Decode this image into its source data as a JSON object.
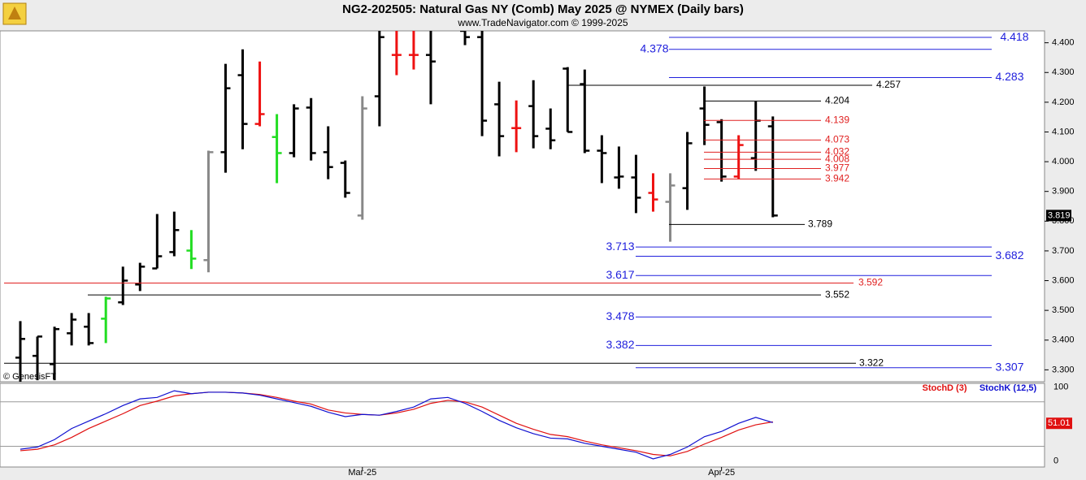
{
  "chart_data": [
    {
      "type": "ohlc",
      "title": "NG2-202505:  Natural Gas NY (Comb) May 2025 @ NYMEX  (Daily bars)",
      "subtitle": "www.TradeNavigator.com © 1999-2025",
      "watermark": "© GenesisFT",
      "categories": [
        null,
        null,
        null,
        null,
        null,
        null,
        null,
        null,
        null,
        null,
        null,
        null,
        null,
        null,
        null,
        null,
        null,
        null,
        null,
        null,
        "Mar-25",
        null,
        null,
        null,
        null,
        null,
        null,
        null,
        null,
        null,
        null,
        null,
        null,
        null,
        null,
        null,
        null,
        null,
        null,
        null,
        null,
        "Apr-25",
        null,
        null,
        null
      ],
      "open": [
        3.341,
        3.347,
        3.319,
        3.423,
        3.445,
        3.472,
        3.527,
        3.587,
        3.641,
        3.696,
        3.701,
        3.669,
        4.032,
        4.291,
        4.127,
        4.083,
        4.029,
        4.182,
        4.032,
        3.996,
        3.819,
        4.22,
        4.359,
        4.359,
        4.359,
        null,
        4.44,
        4.419,
        4.193,
        4.113,
        4.187,
        4.111,
        4.313,
        4.261,
        4.037,
        3.947,
        3.947,
        3.895,
        3.865,
        3.911,
        4.179,
        4.133,
        3.95,
        4.012,
        4.119
      ],
      "high": [
        3.464,
        3.412,
        3.445,
        3.491,
        3.491,
        3.546,
        3.647,
        3.66,
        3.824,
        3.832,
        3.77,
        4.037,
        4.329,
        4.378,
        4.337,
        4.16,
        4.193,
        4.214,
        4.119,
        4.004,
        4.22,
        4.44,
        4.44,
        4.44,
        4.44,
        null,
        4.44,
        4.44,
        4.269,
        4.206,
        4.274,
        4.179,
        4.318,
        4.31,
        4.089,
        4.051,
        4.023,
        3.961,
        3.961,
        4.1,
        4.253,
        4.143,
        4.089,
        4.203,
        4.152
      ],
      "low": [
        3.259,
        3.265,
        3.265,
        3.382,
        3.382,
        3.39,
        3.518,
        3.565,
        3.641,
        3.682,
        3.639,
        3.628,
        3.963,
        4.042,
        4.119,
        3.928,
        4.015,
        4.004,
        3.941,
        3.879,
        3.805,
        4.119,
        4.291,
        4.31,
        4.193,
        null,
        4.392,
        4.086,
        4.018,
        4.032,
        4.045,
        4.042,
        4.1,
        4.029,
        3.928,
        3.909,
        3.827,
        3.832,
        3.731,
        3.838,
        4.056,
        3.933,
        3.941,
        3.969,
        3.813
      ],
      "close": [
        3.404,
        3.412,
        3.437,
        3.469,
        3.39,
        3.54,
        3.6,
        3.647,
        3.682,
        3.77,
        3.674,
        4.032,
        4.247,
        4.127,
        4.16,
        4.029,
        4.179,
        4.029,
        3.982,
        3.895,
        4.179,
        4.419,
        4.359,
        4.359,
        4.337,
        null,
        4.419,
        4.138,
        4.086,
        4.113,
        4.086,
        4.072,
        4.1,
        4.037,
        4.029,
        3.95,
        3.879,
        3.873,
        3.92,
        4.062,
        4.124,
        3.95,
        4.056,
        4.138,
        3.819
      ],
      "bar_colors": [
        "#000000",
        "#000000",
        "#000000",
        "#000000",
        "#000000",
        "#22dd22",
        "#000000",
        "#000000",
        "#000000",
        "#000000",
        "#22dd22",
        "#888888",
        "#000000",
        "#000000",
        "#ee1111",
        "#22dd22",
        "#000000",
        "#000000",
        "#000000",
        "#000000",
        "#888888",
        "#000000",
        "#ee1111",
        "#ee1111",
        "#000000",
        null,
        "#000000",
        "#000000",
        "#000000",
        "#ee1111",
        "#000000",
        "#000000",
        "#000000",
        "#000000",
        "#000000",
        "#000000",
        "#000000",
        "#ee1111",
        "#888888",
        "#000000",
        "#000000",
        "#000000",
        "#ee1111",
        "#000000",
        "#000000"
      ],
      "levels": [
        {
          "value": 4.418,
          "color": "#2020dd"
        },
        {
          "value": 4.378,
          "color": "#2020dd"
        },
        {
          "value": 4.283,
          "color": "#2020dd"
        },
        {
          "value": 4.257,
          "color": "#000000"
        },
        {
          "value": 4.204,
          "color": "#000000"
        },
        {
          "value": 4.139,
          "color": "#e02020"
        },
        {
          "value": 4.073,
          "color": "#e02020"
        },
        {
          "value": 4.032,
          "color": "#e02020"
        },
        {
          "value": 4.008,
          "color": "#e02020"
        },
        {
          "value": 3.977,
          "color": "#e02020"
        },
        {
          "value": 3.942,
          "color": "#e02020"
        },
        {
          "value": 3.789,
          "color": "#000000"
        },
        {
          "value": 3.713,
          "color": "#2020dd"
        },
        {
          "value": 3.682,
          "color": "#2020dd"
        },
        {
          "value": 3.617,
          "color": "#2020dd"
        },
        {
          "value": 3.592,
          "color": "#e02020"
        },
        {
          "value": 3.552,
          "color": "#000000"
        },
        {
          "value": 3.478,
          "color": "#2020dd"
        },
        {
          "value": 3.382,
          "color": "#2020dd"
        },
        {
          "value": 3.322,
          "color": "#000000"
        },
        {
          "value": 3.307,
          "color": "#2020dd"
        }
      ],
      "ylim": [
        3.26,
        4.44
      ],
      "yticks": [
        {
          "value": 3.3,
          "label": "3.300"
        },
        {
          "value": 3.4,
          "label": "3.400"
        },
        {
          "value": 3.5,
          "label": "3.500"
        },
        {
          "value": 3.6,
          "label": "3.600"
        },
        {
          "value": 3.7,
          "label": "3.700"
        },
        {
          "value": 3.8,
          "label": "3.800"
        },
        {
          "value": 3.9,
          "label": "3.900"
        },
        {
          "value": 4.0,
          "label": "4.000"
        },
        {
          "value": 4.1,
          "label": "4.100"
        },
        {
          "value": 4.2,
          "label": "4.200"
        },
        {
          "value": 4.3,
          "label": "4.300"
        },
        {
          "value": 4.4,
          "label": "4.400"
        }
      ]
    },
    {
      "type": "line",
      "series": [
        {
          "name": "StochD (3)",
          "color": "#e01010",
          "values": [
            14,
            16,
            22,
            32,
            44,
            54,
            64,
            75,
            81,
            88,
            91,
            93,
            93,
            92,
            90,
            86,
            81,
            77,
            69,
            65,
            63,
            62,
            65,
            70,
            78,
            82,
            80,
            73,
            62,
            51,
            43,
            36,
            33,
            27,
            22,
            18,
            14,
            9,
            7,
            13,
            23,
            32,
            42,
            49,
            53
          ]
        },
        {
          "name": "StochK (12,5)",
          "color": "#1010d0",
          "values": [
            16,
            19,
            29,
            44,
            54,
            64,
            75,
            84,
            86,
            95,
            91,
            93,
            93,
            92,
            89,
            84,
            79,
            74,
            66,
            60,
            63,
            62,
            67,
            73,
            84,
            86,
            78,
            67,
            55,
            45,
            37,
            31,
            30,
            24,
            20,
            16,
            12,
            3,
            9,
            19,
            33,
            40,
            51,
            59,
            52
          ]
        }
      ],
      "current_value": 51.01,
      "ylim": [
        -8,
        105
      ],
      "yticks": [
        0,
        100
      ],
      "bands": [
        20,
        80
      ]
    }
  ]
}
